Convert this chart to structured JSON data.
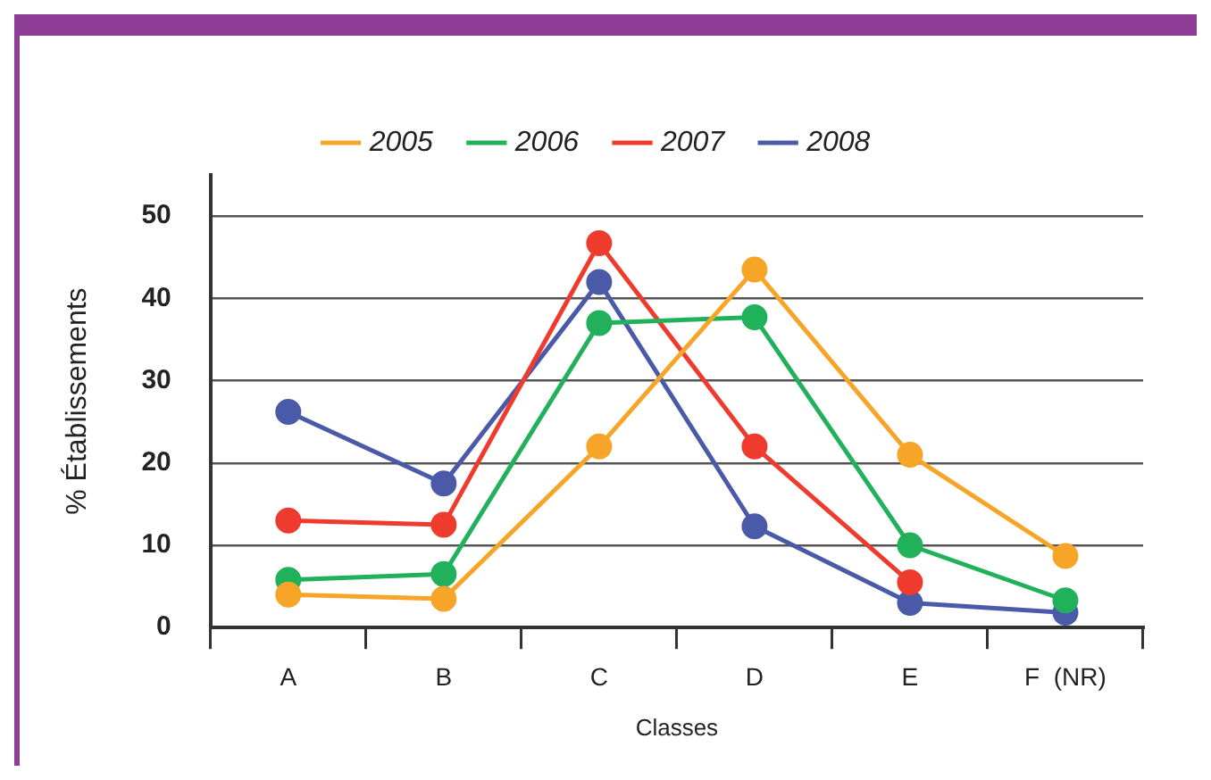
{
  "chart_data": {
    "type": "line",
    "xlabel": "Classes",
    "ylabel": "% Établissements",
    "categories": [
      "A",
      "B",
      "C",
      "D",
      "E",
      "F  (NR)"
    ],
    "series": [
      {
        "name": "2005",
        "color": "#f7a528",
        "values": [
          4,
          3.5,
          22,
          43.5,
          21,
          8.7
        ]
      },
      {
        "name": "2006",
        "color": "#21b15a",
        "values": [
          5.8,
          6.5,
          37,
          37.7,
          10,
          3.3
        ]
      },
      {
        "name": "2007",
        "color": "#ee3b2e",
        "values": [
          13,
          12.5,
          46.7,
          22,
          5.5,
          null
        ]
      },
      {
        "name": "2008",
        "color": "#4a5aa8",
        "values": [
          26.2,
          17.5,
          42,
          12.3,
          3,
          1.8
        ]
      }
    ],
    "ylim": [
      0,
      55
    ],
    "yticks": [
      0,
      10,
      20,
      30,
      40,
      50
    ],
    "grid": "y",
    "legend": "top",
    "marker": "circle",
    "line_style": "solid"
  }
}
